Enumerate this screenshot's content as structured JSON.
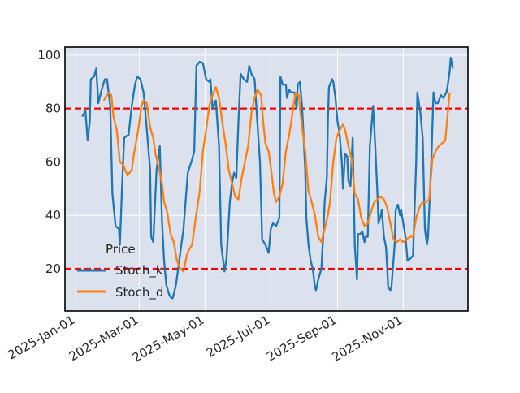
{
  "chart_data": {
    "type": "line",
    "title": "",
    "xlabel": "",
    "ylabel": "",
    "x_unit": "days since 2025-01-01",
    "xlim": [
      -10,
      364
    ],
    "ylim": [
      4.2,
      103
    ],
    "grid": true,
    "y_ticks": [
      20,
      40,
      60,
      80,
      100
    ],
    "x_ticks": [
      {
        "day": 0,
        "label": "2025-Jan-01"
      },
      {
        "day": 59,
        "label": "2025-Mar-01"
      },
      {
        "day": 120,
        "label": "2025-May-01"
      },
      {
        "day": 181,
        "label": "2025-Jul-01"
      },
      {
        "day": 243,
        "label": "2025-Sep-01"
      },
      {
        "day": 304,
        "label": "2025-Nov-01"
      }
    ],
    "reference_lines": [
      {
        "y": 80,
        "color": "#ff0000",
        "style": "dashed"
      },
      {
        "y": 20,
        "color": "#ff0000",
        "style": "dashed"
      }
    ],
    "legend": {
      "title": "Price",
      "placement": "lower-left"
    },
    "series": [
      {
        "name": "Stoch_k",
        "color": "#1f77b4",
        "x": [
          6,
          9,
          11,
          13,
          14,
          17,
          19,
          21,
          24,
          27,
          29,
          32,
          34,
          37,
          40,
          41,
          43,
          45,
          48,
          49,
          52,
          55,
          57,
          60,
          63,
          66,
          69,
          70,
          72,
          75,
          78,
          80,
          82,
          84,
          87,
          89,
          90,
          93,
          95,
          97,
          100,
          104,
          108,
          110,
          112,
          115,
          118,
          121,
          124,
          125,
          127,
          130,
          133,
          135,
          138,
          140,
          143,
          145,
          147,
          149,
          151,
          153,
          156,
          159,
          161,
          163,
          166,
          168,
          171,
          173,
          176,
          179,
          181,
          183,
          186,
          189,
          190,
          192,
          195,
          196,
          198,
          200,
          203,
          205,
          206,
          208,
          210,
          213,
          214,
          216,
          218,
          220,
          222,
          223,
          225,
          228,
          230,
          231,
          233,
          234,
          235,
          238,
          239,
          241,
          243,
          245,
          247,
          248,
          250,
          252,
          253,
          255,
          257,
          259,
          261,
          262,
          264,
          266,
          268,
          269,
          271,
          273,
          276,
          278,
          280,
          281,
          283,
          284,
          286,
          288,
          290,
          292,
          293,
          296,
          297,
          299,
          301,
          302,
          304,
          306,
          308,
          311,
          313,
          316,
          317,
          320,
          322,
          324,
          326,
          327,
          330,
          332,
          334,
          336,
          339,
          341,
          344,
          345,
          347,
          348,
          350
        ],
        "y": [
          77,
          79,
          68,
          75,
          91,
          92,
          95,
          82,
          87,
          91,
          91,
          81,
          48,
          36,
          35,
          29,
          51,
          69,
          70,
          70,
          81,
          89,
          92,
          91,
          86,
          72,
          57,
          32,
          30,
          57,
          66,
          38,
          23,
          14,
          10,
          9,
          9,
          14,
          20,
          26,
          35,
          56,
          61,
          64,
          96,
          97.5,
          97,
          91,
          90,
          91,
          80,
          83,
          66,
          29,
          19,
          24,
          45,
          52,
          56,
          54,
          75,
          93,
          91,
          90,
          96,
          93,
          91,
          78,
          60,
          31,
          29,
          26,
          35,
          37,
          36,
          39,
          92,
          89,
          89,
          84,
          87,
          86,
          86,
          80,
          89,
          90,
          81,
          57,
          39,
          29,
          23,
          20,
          13,
          12,
          16,
          20,
          35,
          45,
          54,
          75,
          88,
          91,
          90,
          84,
          75,
          70,
          60,
          50,
          63,
          62,
          53,
          51,
          69,
          29,
          16,
          33,
          33,
          34,
          30,
          32,
          32,
          66,
          81,
          66,
          48,
          37,
          40,
          42,
          32,
          28,
          13,
          12,
          13,
          29,
          42,
          44,
          40,
          42,
          37,
          32,
          23,
          24,
          25,
          60,
          86,
          78,
          69,
          35,
          29,
          32,
          60,
          86,
          82,
          82,
          85,
          84,
          86,
          88,
          94,
          99,
          95
        ]
      },
      {
        "name": "Stoch_d",
        "color": "#ff7f0e",
        "x": [
          26,
          29,
          31,
          33,
          35,
          38,
          41,
          44,
          48,
          52,
          54,
          58,
          61,
          63,
          66,
          69,
          72,
          74,
          77,
          80,
          82,
          85,
          88,
          91,
          94,
          97,
          100,
          103,
          105,
          108,
          111,
          115,
          118,
          121,
          124,
          127,
          130,
          133,
          136,
          139,
          142,
          145,
          148,
          151,
          154,
          157,
          160,
          163,
          166,
          169,
          172,
          174,
          176,
          179,
          182,
          184,
          186,
          189,
          192,
          195,
          198,
          200,
          202,
          204,
          207,
          209,
          211,
          213,
          216,
          219,
          222,
          225,
          228,
          231,
          234,
          236,
          239,
          242,
          245,
          248,
          250,
          253,
          256,
          259,
          262,
          265,
          268,
          271,
          274,
          277,
          280,
          283,
          286,
          289,
          292,
          295,
          298,
          301,
          304,
          307,
          310,
          313,
          316,
          319,
          322,
          325,
          328,
          331,
          334,
          337,
          340,
          343,
          347
        ],
        "y": [
          83,
          85,
          86,
          85,
          77,
          72,
          60,
          59,
          55,
          57,
          63,
          72,
          81,
          83,
          82,
          73,
          69,
          63,
          58,
          52,
          45,
          41,
          33,
          30,
          23,
          20,
          19,
          25,
          27,
          29,
          38,
          49,
          64,
          72,
          81,
          85,
          88,
          84,
          75,
          67,
          57,
          52,
          47,
          46,
          54,
          60,
          66,
          78,
          84,
          87,
          85,
          75,
          67,
          64,
          55,
          48,
          45,
          47,
          52,
          64,
          70,
          75,
          81,
          86,
          85,
          77,
          70,
          64,
          49,
          45,
          40,
          32,
          30,
          35,
          40,
          45,
          60,
          69,
          72,
          74,
          72,
          66,
          61,
          48,
          46,
          39,
          36,
          37,
          41,
          45,
          46,
          47,
          46,
          43,
          37,
          31,
          30,
          31,
          30,
          31,
          32,
          32,
          39,
          43,
          45,
          45,
          46,
          61,
          64,
          66,
          67,
          68,
          86
        ]
      }
    ]
  }
}
